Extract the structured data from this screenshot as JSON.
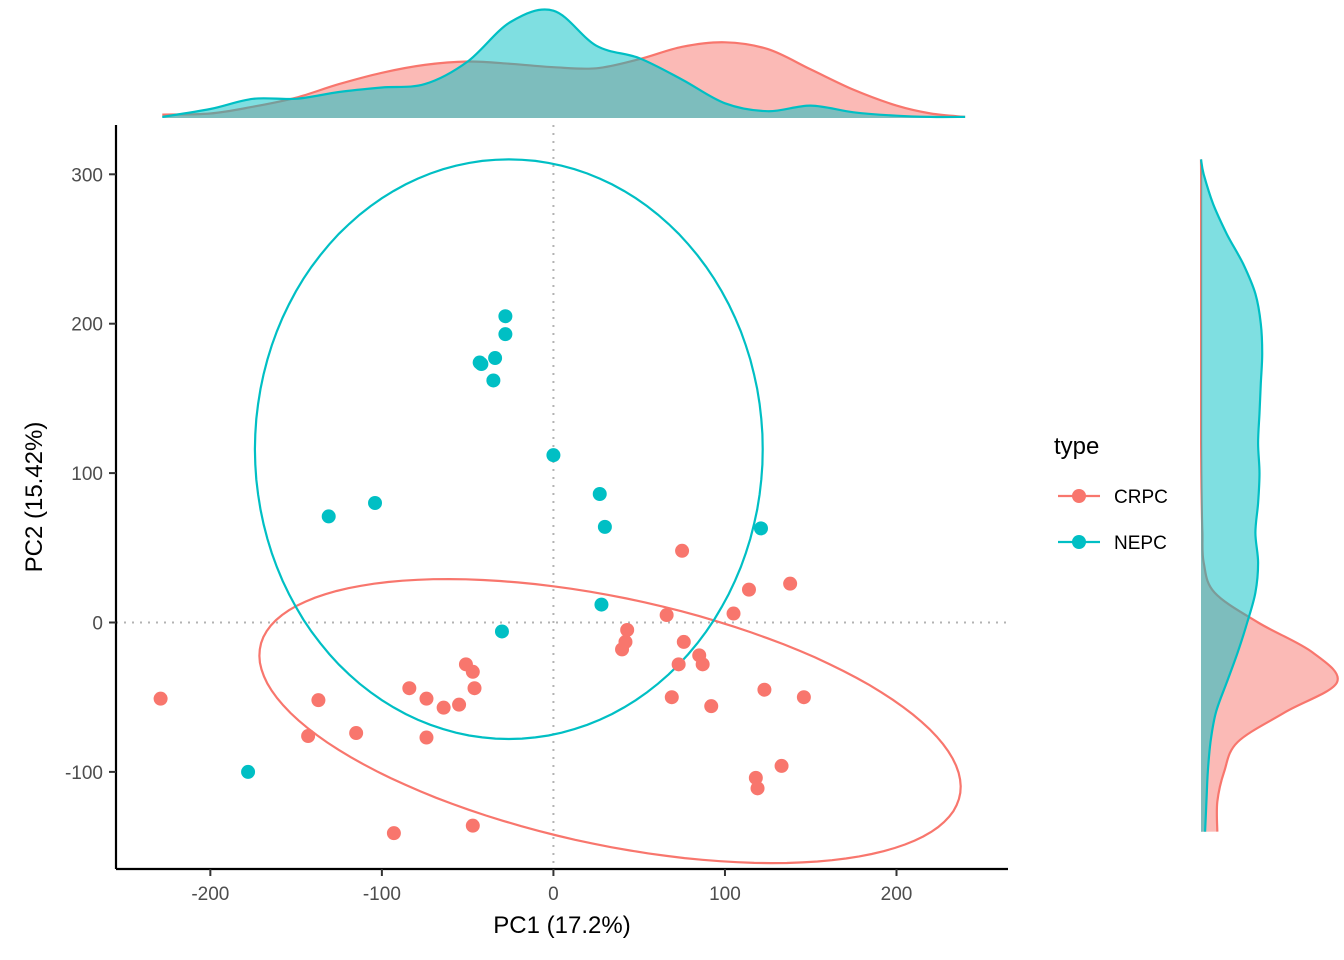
{
  "chart_data": {
    "type": "scatter",
    "xlabel": "PC1 (17.2%)",
    "ylabel": "PC2 (15.42%)",
    "xlim": [
      -255,
      265
    ],
    "ylim": [
      -165,
      333
    ],
    "x_ticks": [
      -200,
      -100,
      0,
      100,
      200
    ],
    "x_tick_labels": [
      "-200",
      "-100",
      "0",
      "100",
      "200"
    ],
    "y_ticks": [
      -100,
      0,
      100,
      200,
      300
    ],
    "y_tick_labels": [
      "-100",
      "0",
      "100",
      "200",
      "300"
    ],
    "reference_lines": {
      "x": 0,
      "y": 0,
      "style": "dotted"
    },
    "grid": false,
    "legend": {
      "title": "type",
      "placement": "right",
      "entries": [
        "CRPC",
        "NEPC"
      ]
    },
    "colors": {
      "CRPC": "#F8766D",
      "NEPC": "#00BFC4"
    },
    "marginal_densities": {
      "top": "PC1 density by type",
      "right": "PC2 density by type"
    },
    "series": [
      {
        "name": "CRPC",
        "color": "#F8766D",
        "points": [
          [
            -229,
            -51
          ],
          [
            -137,
            -52
          ],
          [
            -143,
            -76
          ],
          [
            -115,
            -74
          ],
          [
            -93,
            -141
          ],
          [
            -84,
            -44
          ],
          [
            -74,
            -51
          ],
          [
            -74,
            -77
          ],
          [
            -64,
            -57
          ],
          [
            -55,
            -55
          ],
          [
            -51,
            -28
          ],
          [
            -47,
            -33
          ],
          [
            -46,
            -44
          ],
          [
            -47,
            -136
          ],
          [
            40,
            -18
          ],
          [
            42,
            -13
          ],
          [
            43,
            -5
          ],
          [
            66,
            5
          ],
          [
            69,
            -50
          ],
          [
            73,
            -28
          ],
          [
            75,
            48
          ],
          [
            76,
            -13
          ],
          [
            85,
            -22
          ],
          [
            87,
            -28
          ],
          [
            92,
            -56
          ],
          [
            105,
            6
          ],
          [
            114,
            22
          ],
          [
            118,
            -104
          ],
          [
            119,
            -111
          ],
          [
            123,
            -45
          ],
          [
            133,
            -96
          ],
          [
            138,
            26
          ],
          [
            146,
            -50
          ]
        ]
      },
      {
        "name": "NEPC",
        "color": "#00BFC4",
        "points": [
          [
            -178,
            -100
          ],
          [
            -131,
            71
          ],
          [
            -104,
            80
          ],
          [
            -43,
            174
          ],
          [
            -42,
            173
          ],
          [
            -34,
            177
          ],
          [
            -35,
            162
          ],
          [
            -28,
            205
          ],
          [
            -28,
            193
          ],
          [
            -30,
            -6
          ],
          [
            0,
            112
          ],
          [
            27,
            86
          ],
          [
            30,
            64
          ],
          [
            28,
            12
          ],
          [
            121,
            63
          ]
        ]
      }
    ],
    "ellipses": [
      {
        "name": "CRPC",
        "center": [
          33,
          -66
        ],
        "semi_axes": [
          210,
          82
        ],
        "rotation_deg": -14.4
      },
      {
        "name": "NEPC",
        "center": [
          -26,
          116
        ],
        "semi_axes": [
          148,
          194
        ],
        "rotation_deg": 0
      }
    ],
    "density_top": {
      "x": [
        -228,
        -200,
        -175,
        -150,
        -125,
        -100,
        -75,
        -50,
        -25,
        0,
        25,
        50,
        75,
        100,
        125,
        150,
        175,
        200,
        220,
        240
      ],
      "CRPC": [
        0.03,
        0.04,
        0.1,
        0.18,
        0.3,
        0.4,
        0.47,
        0.5,
        0.48,
        0.45,
        0.44,
        0.52,
        0.63,
        0.67,
        0.61,
        0.43,
        0.25,
        0.11,
        0.04,
        0.01
      ],
      "NEPC": [
        0.01,
        0.08,
        0.17,
        0.17,
        0.23,
        0.27,
        0.3,
        0.5,
        0.85,
        0.95,
        0.64,
        0.53,
        0.34,
        0.13,
        0.06,
        0.11,
        0.05,
        0.02,
        0.01,
        0.01
      ]
    },
    "density_right": {
      "y": [
        -140,
        -120,
        -100,
        -80,
        -60,
        -40,
        -20,
        0,
        20,
        40,
        60,
        80,
        100,
        120,
        140,
        160,
        180,
        200,
        220,
        240,
        260,
        280,
        300,
        310
      ],
      "CRPC": [
        0.12,
        0.12,
        0.17,
        0.27,
        0.62,
        1.0,
        0.82,
        0.42,
        0.1,
        0.02,
        0.01,
        0.005,
        0.002,
        0.001,
        0.001,
        0.001,
        0.001,
        0.001,
        0.001,
        0.001,
        0.001,
        0.001,
        0.001,
        0.0
      ],
      "NEPC": [
        0.03,
        0.04,
        0.05,
        0.07,
        0.11,
        0.19,
        0.27,
        0.34,
        0.4,
        0.42,
        0.4,
        0.42,
        0.43,
        0.42,
        0.43,
        0.44,
        0.45,
        0.44,
        0.4,
        0.31,
        0.19,
        0.09,
        0.02,
        0.0
      ]
    }
  }
}
